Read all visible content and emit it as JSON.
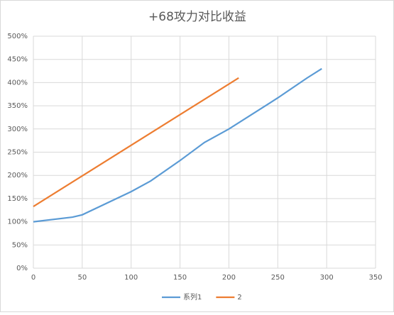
{
  "chart_data": {
    "type": "line",
    "title": "+68攻力对比收益",
    "x": [
      0,
      40,
      50,
      100,
      120,
      150,
      175,
      200,
      250,
      280,
      295
    ],
    "series": [
      {
        "name": "系列1",
        "color": "#5b9bd5",
        "values": [
          100,
          110,
          115,
          165,
          188,
          232,
          271,
          300,
          367,
          410,
          430
        ]
      },
      {
        "name": "2",
        "color": "#ed7d31",
        "x": [
          0,
          210
        ],
        "values": [
          133,
          410
        ]
      }
    ],
    "xlim": [
      0,
      350
    ],
    "xticks": [
      0,
      50,
      100,
      150,
      200,
      250,
      300,
      350
    ],
    "ylim": [
      0,
      500
    ],
    "yticks": [
      {
        "value": 0,
        "label": "0%"
      },
      {
        "value": 50,
        "label": "50%"
      },
      {
        "value": 100,
        "label": "100%"
      },
      {
        "value": 150,
        "label": "150%"
      },
      {
        "value": 200,
        "label": "200%"
      },
      {
        "value": 250,
        "label": "250%"
      },
      {
        "value": 300,
        "label": "300%"
      },
      {
        "value": 350,
        "label": "350%"
      },
      {
        "value": 400,
        "label": "400%"
      },
      {
        "value": 450,
        "label": "450%"
      },
      {
        "value": 500,
        "label": "500%"
      }
    ],
    "grid": true
  }
}
